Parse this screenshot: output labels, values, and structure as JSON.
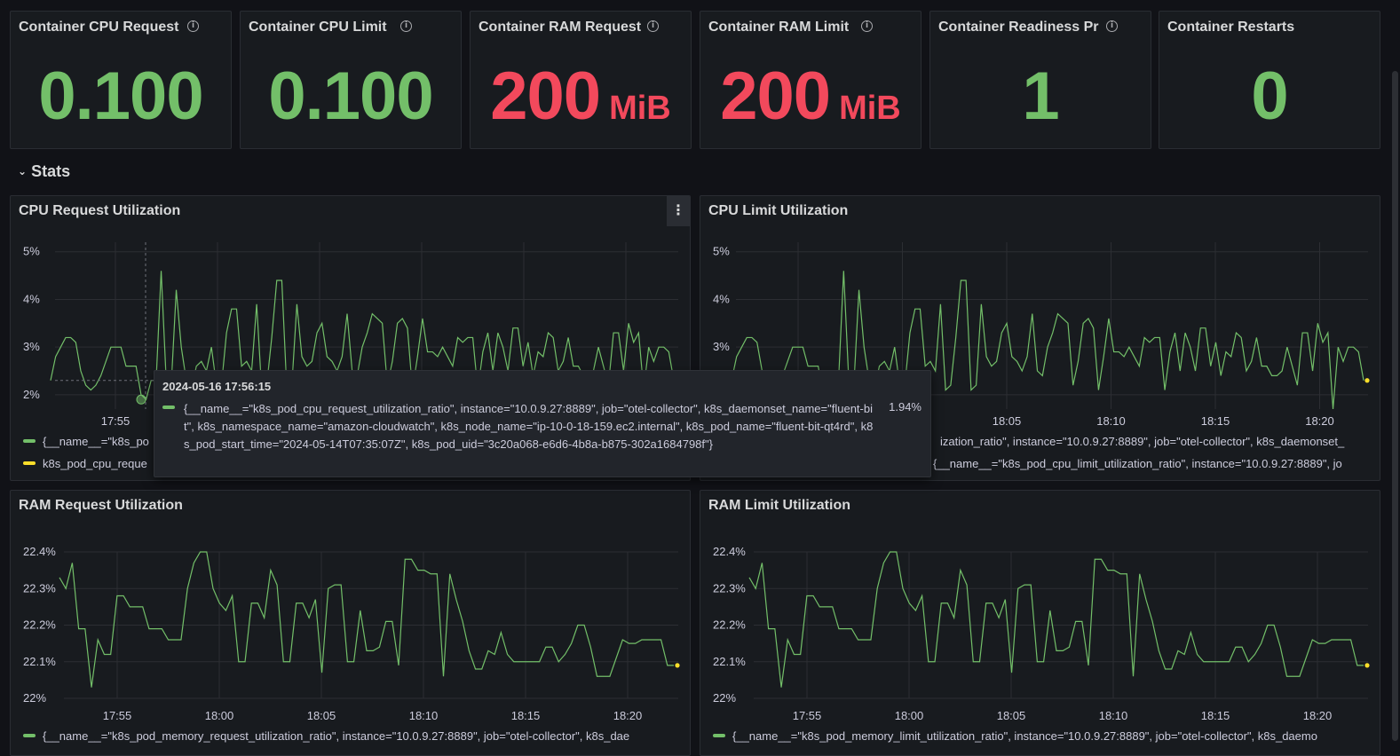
{
  "stats": [
    {
      "title": "Container CPU Request",
      "value": "0.100",
      "unit": "",
      "color": "#73bf69"
    },
    {
      "title": "Container CPU Limit",
      "value": "0.100",
      "unit": "",
      "color": "#73bf69"
    },
    {
      "title": "Container RAM Request",
      "value": "200",
      "unit": "MiB",
      "color": "#f2495c"
    },
    {
      "title": "Container RAM Limit",
      "value": "200",
      "unit": "MiB",
      "color": "#f2495c"
    },
    {
      "title": "Container Readiness Pro",
      "value": "1",
      "unit": "",
      "color": "#73bf69"
    },
    {
      "title": "Container Restarts",
      "value": "0",
      "unit": "",
      "color": "#73bf69"
    }
  ],
  "section": {
    "title": "Stats",
    "chevron_icon": "chevron-down-icon"
  },
  "panels": {
    "cpu_request": {
      "title": "CPU Request Utilization",
      "legend": [
        {
          "label": "{__name__=\"k8s_po",
          "color": "#73bf69"
        },
        {
          "label": "k8s_pod_cpu_reque",
          "color": "#fade2a"
        }
      ]
    },
    "cpu_limit": {
      "title": "CPU Limit Utilization",
      "legend": [
        {
          "label": "ization_ratio\", instance=\"10.0.9.27:8889\", job=\"otel-collector\", k8s_daemonset_",
          "color": "#73bf69"
        },
        {
          "label": "{__name__=\"k8s_pod_cpu_limit_utilization_ratio\", instance=\"10.0.9.27:8889\", jo",
          "color": "#fade2a"
        }
      ]
    },
    "ram_request": {
      "title": "RAM Request Utilization",
      "legend": [
        {
          "label": "{__name__=\"k8s_pod_memory_request_utilization_ratio\", instance=\"10.0.9.27:8889\", job=\"otel-collector\", k8s_dae",
          "color": "#73bf69"
        }
      ]
    },
    "ram_limit": {
      "title": "RAM Limit Utilization",
      "legend": [
        {
          "label": "{__name__=\"k8s_pod_memory_limit_utilization_ratio\", instance=\"10.0.9.27:8889\", job=\"otel-collector\", k8s_daemo",
          "color": "#73bf69"
        }
      ]
    }
  },
  "tooltip": {
    "time": "2024-05-16 17:56:15",
    "label": "{__name__=\"k8s_pod_cpu_request_utilization_ratio\", instance=\"10.0.9.27:8889\", job=\"otel-collector\", k8s_daemonset_name=\"fluent-bit\", k8s_namespace_name=\"amazon-cloudwatch\", k8s_node_name=\"ip-10-0-18-159.ec2.internal\", k8s_pod_name=\"fluent-bit-qt4rd\", k8s_pod_start_time=\"2024-05-14T07:35:07Z\", k8s_pod_uid=\"3c20a068-e6d6-4b8a-b875-302a1684798f\"}",
    "value": "1.94%"
  },
  "chart_data": [
    {
      "id": "cpu_request",
      "type": "line",
      "title": "CPU Request Utilization",
      "x_ticks": [
        "17:55",
        "18:00",
        "18:05",
        "18:10",
        "18:15",
        "18:20"
      ],
      "y_ticks": [
        "2%",
        "3%",
        "4%",
        "5%"
      ],
      "ylim": [
        1.7,
        5.2
      ],
      "series": [
        {
          "values": [
            2.3,
            2.8,
            3.0,
            3.2,
            3.2,
            3.1,
            2.5,
            2.2,
            2.1,
            2.2,
            2.4,
            2.7,
            3.0,
            3.0,
            3.0,
            2.6,
            2.6,
            2.6,
            2.0,
            1.9,
            2.3,
            2.3,
            4.6,
            2.3,
            2.2,
            4.2,
            3.0,
            2.3,
            2.1,
            2.6,
            2.7,
            2.5,
            3.0,
            2.2,
            2.2,
            3.3,
            3.8,
            3.8,
            2.6,
            2.7,
            2.5,
            3.9,
            2.1,
            2.2,
            3.2,
            4.4,
            4.4,
            2.1,
            2.2,
            3.9,
            2.8,
            2.6,
            2.7,
            3.3,
            3.5,
            2.8,
            2.7,
            2.5,
            2.8,
            3.7,
            2.5,
            2.4,
            3.0,
            3.3,
            3.7,
            3.6,
            3.5,
            2.2,
            2.7,
            3.5,
            3.6,
            3.4,
            2.1,
            2.8,
            3.6,
            2.9,
            2.9,
            2.8,
            3.0,
            2.8,
            2.6,
            3.2,
            3.1,
            3.2,
            3.2,
            2.1,
            2.9,
            3.3,
            2.5,
            3.3,
            3.0,
            2.5,
            3.4,
            3.4,
            2.6,
            3.1,
            2.4,
            2.9,
            2.8,
            3.3,
            3.2,
            2.5,
            2.7,
            3.2,
            2.6,
            2.6,
            2.4,
            2.4,
            2.5,
            3.0,
            2.6,
            2.2,
            3.3,
            3.3,
            2.5,
            3.5,
            3.1,
            3.3,
            2.1,
            3.0,
            2.7,
            3.0,
            3.0,
            2.9,
            2.3
          ]
        }
      ]
    },
    {
      "id": "cpu_limit",
      "type": "line",
      "title": "CPU Limit Utilization",
      "x_ticks": [
        "17:55",
        "18:00",
        "18:05",
        "18:10",
        "18:15",
        "18:20"
      ],
      "y_ticks": [
        "2%",
        "3%",
        "4%",
        "5%"
      ],
      "ylim": [
        1.7,
        5.2
      ],
      "series": [
        {
          "values": [
            2.3,
            2.8,
            3.0,
            3.2,
            3.2,
            3.1,
            2.5,
            2.2,
            2.1,
            2.2,
            2.4,
            2.7,
            3.0,
            3.0,
            3.0,
            2.6,
            2.6,
            2.6,
            2.0,
            1.9,
            2.3,
            2.3,
            4.6,
            2.3,
            2.2,
            4.2,
            3.0,
            2.3,
            2.1,
            2.6,
            2.7,
            2.5,
            3.0,
            2.2,
            2.2,
            3.3,
            3.8,
            3.8,
            2.6,
            2.7,
            2.5,
            3.9,
            2.1,
            2.2,
            3.2,
            4.4,
            4.4,
            2.1,
            2.2,
            3.9,
            2.8,
            2.6,
            2.7,
            3.3,
            3.5,
            2.8,
            2.7,
            2.5,
            2.8,
            3.7,
            2.5,
            2.4,
            3.0,
            3.3,
            3.7,
            3.6,
            3.5,
            2.2,
            2.7,
            3.5,
            3.6,
            3.4,
            2.1,
            2.8,
            3.6,
            2.9,
            2.9,
            2.8,
            3.0,
            2.8,
            2.6,
            3.2,
            3.1,
            3.2,
            3.2,
            2.1,
            2.9,
            3.3,
            2.5,
            3.3,
            3.0,
            2.5,
            3.4,
            3.4,
            2.6,
            3.1,
            2.4,
            2.9,
            2.8,
            3.3,
            3.2,
            2.5,
            2.7,
            3.2,
            2.6,
            2.6,
            2.4,
            2.4,
            2.5,
            3.0,
            2.6,
            2.2,
            3.3,
            3.3,
            2.5,
            3.5,
            3.1,
            3.3,
            1.7,
            3.0,
            2.7,
            3.0,
            3.0,
            2.9,
            2.3
          ]
        }
      ]
    },
    {
      "id": "ram_request",
      "type": "line",
      "title": "RAM Request Utilization",
      "x_ticks": [
        "17:55",
        "18:00",
        "18:05",
        "18:10",
        "18:15",
        "18:20"
      ],
      "y_ticks": [
        "22%",
        "22.1%",
        "22.2%",
        "22.3%",
        "22.4%"
      ],
      "ylim": [
        22.0,
        22.4
      ],
      "series": [
        {
          "values": [
            22.33,
            22.3,
            22.37,
            22.19,
            22.19,
            22.03,
            22.16,
            22.12,
            22.12,
            22.28,
            22.28,
            22.25,
            22.25,
            22.25,
            22.19,
            22.19,
            22.19,
            22.16,
            22.16,
            22.16,
            22.3,
            22.37,
            22.4,
            22.4,
            22.3,
            22.26,
            22.24,
            22.28,
            22.1,
            22.1,
            22.26,
            22.26,
            22.22,
            22.35,
            22.31,
            22.1,
            22.1,
            22.26,
            22.26,
            22.22,
            22.27,
            22.07,
            22.3,
            22.31,
            22.31,
            22.1,
            22.1,
            22.24,
            22.13,
            22.13,
            22.14,
            22.21,
            22.21,
            22.09,
            22.38,
            22.38,
            22.35,
            22.35,
            22.34,
            22.34,
            22.06,
            22.34,
            22.27,
            22.21,
            22.13,
            22.08,
            22.08,
            22.13,
            22.12,
            22.18,
            22.12,
            22.1,
            22.1,
            22.1,
            22.1,
            22.1,
            22.14,
            22.14,
            22.1,
            22.12,
            22.15,
            22.2,
            22.2,
            22.14,
            22.06,
            22.06,
            22.06,
            22.11,
            22.16,
            22.15,
            22.15,
            22.16,
            22.16,
            22.16,
            22.16,
            22.09,
            22.09
          ]
        }
      ]
    },
    {
      "id": "ram_limit",
      "type": "line",
      "title": "RAM Limit Utilization",
      "x_ticks": [
        "17:55",
        "18:00",
        "18:05",
        "18:10",
        "18:15",
        "18:20"
      ],
      "y_ticks": [
        "22%",
        "22.1%",
        "22.2%",
        "22.3%",
        "22.4%"
      ],
      "ylim": [
        22.0,
        22.4
      ],
      "series": [
        {
          "values": [
            22.33,
            22.3,
            22.37,
            22.19,
            22.19,
            22.03,
            22.16,
            22.12,
            22.12,
            22.28,
            22.28,
            22.25,
            22.25,
            22.25,
            22.19,
            22.19,
            22.19,
            22.16,
            22.16,
            22.16,
            22.3,
            22.37,
            22.4,
            22.4,
            22.3,
            22.26,
            22.24,
            22.28,
            22.1,
            22.1,
            22.26,
            22.26,
            22.22,
            22.35,
            22.31,
            22.1,
            22.1,
            22.26,
            22.26,
            22.22,
            22.27,
            22.07,
            22.3,
            22.31,
            22.31,
            22.1,
            22.1,
            22.24,
            22.13,
            22.13,
            22.14,
            22.21,
            22.21,
            22.09,
            22.38,
            22.38,
            22.35,
            22.35,
            22.34,
            22.34,
            22.06,
            22.34,
            22.27,
            22.21,
            22.13,
            22.08,
            22.08,
            22.13,
            22.12,
            22.18,
            22.12,
            22.1,
            22.1,
            22.1,
            22.1,
            22.1,
            22.14,
            22.14,
            22.1,
            22.12,
            22.15,
            22.2,
            22.2,
            22.14,
            22.06,
            22.06,
            22.06,
            22.11,
            22.16,
            22.15,
            22.15,
            22.16,
            22.16,
            22.16,
            22.16,
            22.09,
            22.09
          ]
        }
      ]
    }
  ],
  "colors": {
    "series": "#73bf69",
    "current_point": "#fade2a",
    "grid": "#2c2e33"
  }
}
